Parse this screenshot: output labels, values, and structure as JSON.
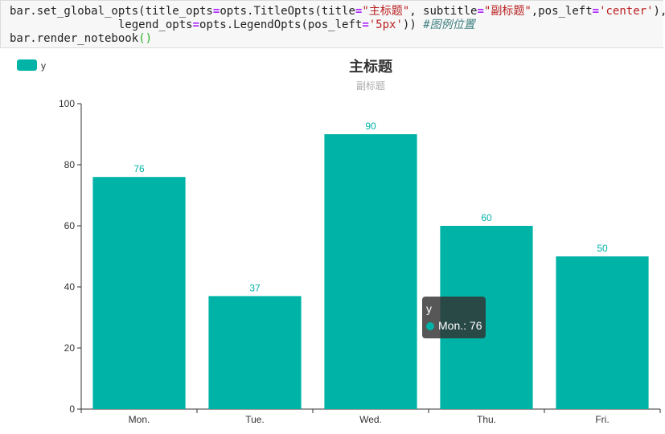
{
  "code": {
    "line1": [
      {
        "t": "bar.set_global_opts(title_opts",
        "c": ""
      },
      {
        "t": "=",
        "c": "kw"
      },
      {
        "t": "opts.TitleOpts(title",
        "c": ""
      },
      {
        "t": "=",
        "c": "kw"
      },
      {
        "t": "\"主标题\"",
        "c": "str"
      },
      {
        "t": ", subtitle",
        "c": ""
      },
      {
        "t": "=",
        "c": "kw"
      },
      {
        "t": "\"副标题\"",
        "c": "str"
      },
      {
        "t": ",pos_left",
        "c": ""
      },
      {
        "t": "=",
        "c": "kw"
      },
      {
        "t": "'center'",
        "c": "str"
      },
      {
        "t": "),",
        "c": ""
      }
    ],
    "line2": [
      {
        "t": "                legend_opts",
        "c": ""
      },
      {
        "t": "=",
        "c": "kw"
      },
      {
        "t": "opts.LegendOpts(pos_left",
        "c": ""
      },
      {
        "t": "=",
        "c": "kw"
      },
      {
        "t": "'5px'",
        "c": "str"
      },
      {
        "t": ")) ",
        "c": ""
      },
      {
        "t": "#图例位置",
        "c": "cm"
      }
    ],
    "line3": [
      {
        "t": "bar.render_notebook",
        "c": ""
      },
      {
        "t": "()",
        "c": "par"
      }
    ]
  },
  "chart_data": {
    "type": "bar",
    "title": "主标题",
    "subtitle": "副标题",
    "categories": [
      "Mon.",
      "Tue.",
      "Wed.",
      "Thu.",
      "Fri."
    ],
    "series": [
      {
        "name": "y",
        "values": [
          76,
          37,
          90,
          60,
          50
        ],
        "color": "#00b3a7"
      }
    ],
    "xlabel": "",
    "ylabel": "",
    "ylim": [
      0,
      100
    ],
    "yticks": [
      0,
      20,
      40,
      60,
      80,
      100
    ],
    "grid": false,
    "legend": {
      "position": "top-left",
      "entries": [
        "y"
      ]
    },
    "data_labels": true
  },
  "tooltip": {
    "series": "y",
    "category": "Mon.",
    "value": 76,
    "text": "Mon.: 76"
  },
  "colors": {
    "bar": "#00b3a7",
    "label": "#00b3a7",
    "axis": "#333333",
    "title": "#333333",
    "subtitle": "#aaaaaa"
  }
}
